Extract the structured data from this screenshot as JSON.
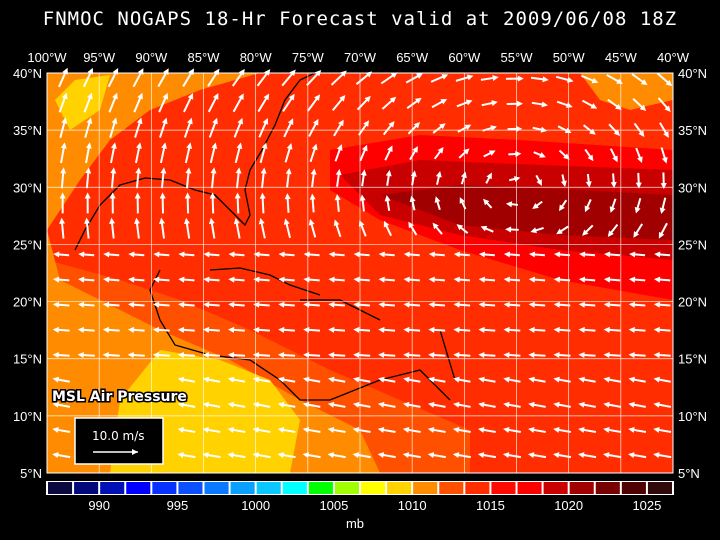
{
  "title": "FNMOC NOGAPS 18-Hr Forecast valid at 2009/06/08 18Z",
  "map": {
    "lon_labels": [
      "100°W",
      "95°W",
      "90°W",
      "85°W",
      "80°W",
      "75°W",
      "70°W",
      "65°W",
      "60°W",
      "55°W",
      "50°W",
      "45°W",
      "40°W"
    ],
    "lat_labels": [
      "40°N",
      "35°N",
      "30°N",
      "25°N",
      "20°N",
      "15°N",
      "10°N",
      "5°N"
    ],
    "field_label": "MSL Air Pressure",
    "reference_vector": "10.0 m/s",
    "vector_color": "#ffffff",
    "grid_color": "#ffffff"
  },
  "colorbar": {
    "colors": [
      "#0a0a40",
      "#00087a",
      "#0010b4",
      "#0000ff",
      "#0a32ff",
      "#0a50ff",
      "#0a78ff",
      "#0aa0ff",
      "#0ac8ff",
      "#00ffff",
      "#00ff00",
      "#a0ff00",
      "#ffff00",
      "#ffd200",
      "#ff8c00",
      "#ff5000",
      "#ff2d00",
      "#ff0a00",
      "#ff0000",
      "#c80000",
      "#a00000",
      "#780000",
      "#500000",
      "#300a0a"
    ],
    "labels": [
      "990",
      "995",
      "1000",
      "1005",
      "1010",
      "1015",
      "1020",
      "1025"
    ],
    "unit": "mb"
  }
}
